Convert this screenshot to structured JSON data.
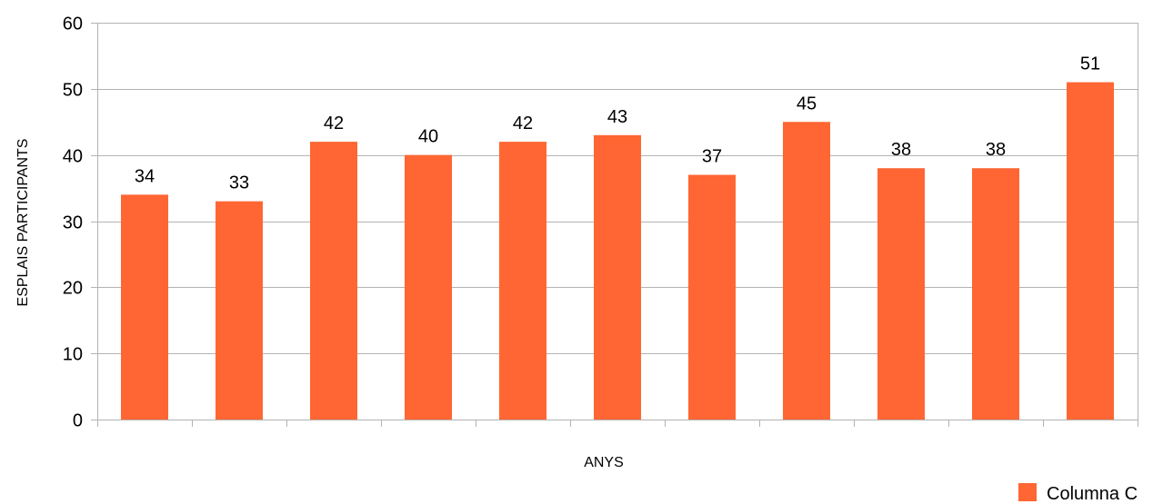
{
  "chart_data": {
    "type": "bar",
    "title": "",
    "xlabel": "ANYS",
    "ylabel": "ESPLAIS PARTICIPANTS",
    "ylim": [
      0,
      60
    ],
    "yticks": [
      0,
      10,
      20,
      30,
      40,
      50,
      60
    ],
    "grid": true,
    "legend_position": "bottom-right",
    "categories": [
      "",
      "",
      "",
      "",
      "",
      "",
      "",
      "",
      "",
      "",
      ""
    ],
    "series": [
      {
        "name": "Columna C",
        "color": "#ff6633",
        "values": [
          34,
          33,
          42,
          40,
          42,
          43,
          37,
          45,
          38,
          38,
          51
        ]
      }
    ]
  }
}
